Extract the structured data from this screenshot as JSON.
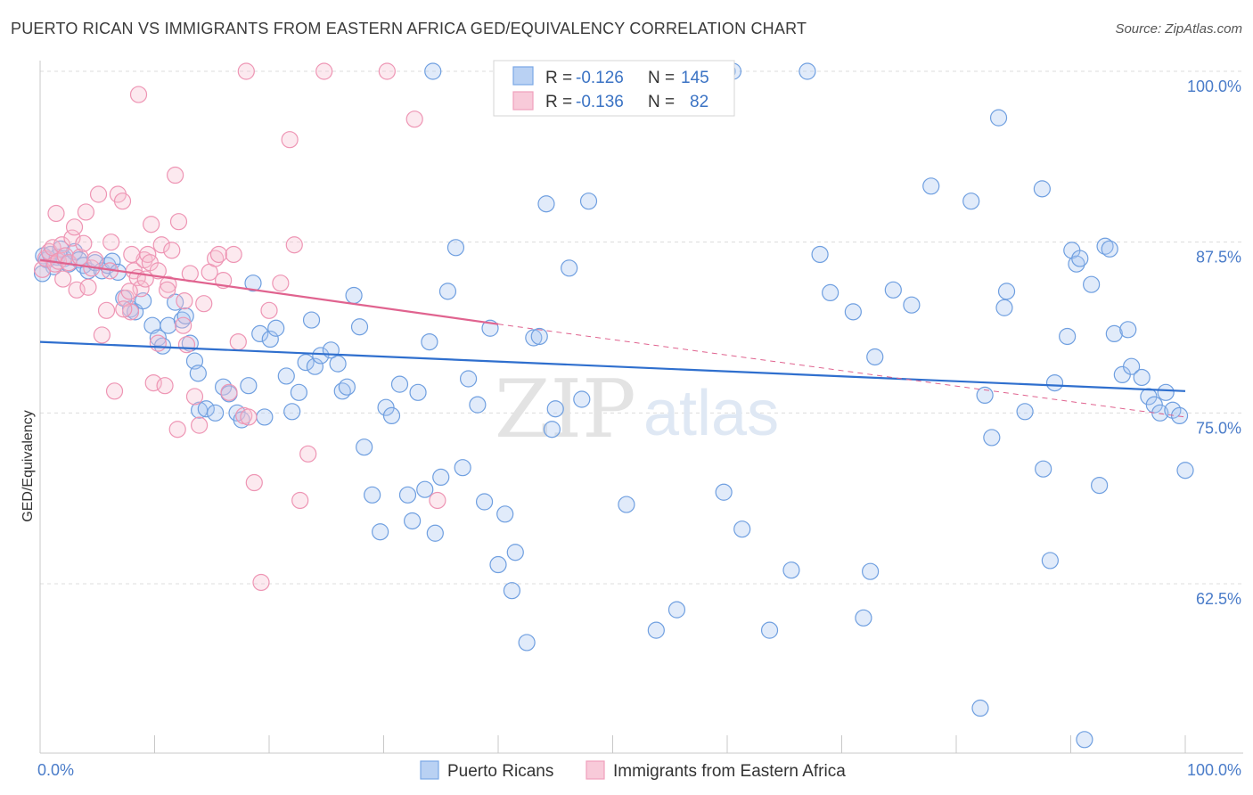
{
  "header": {
    "title": "PUERTO RICAN VS IMMIGRANTS FROM EASTERN AFRICA GED/EQUIVALENCY CORRELATION CHART",
    "source": "Source: ZipAtlas.com"
  },
  "watermark": {
    "zip": "ZIP",
    "atlas": "atlas"
  },
  "legend_box": {
    "rows": [
      {
        "r_label": "R = ",
        "r_value": "-0.126",
        "n_label": "N = ",
        "n_value": "145"
      },
      {
        "r_label": "R = ",
        "r_value": "-0.136",
        "n_label": "N = ",
        "n_value": "82"
      }
    ]
  },
  "chart_data": {
    "type": "scatter",
    "title": "PUERTO RICAN VS IMMIGRANTS FROM EASTERN AFRICA GED/EQUIVALENCY CORRELATION CHART",
    "xlabel": "",
    "ylabel": "GED/Equivalency",
    "xlim": [
      0,
      100
    ],
    "ylim": [
      50,
      100
    ],
    "x_tick_labels": [
      "0.0%",
      "100.0%"
    ],
    "y_ticks": [
      62.5,
      75.0,
      87.5,
      100.0
    ],
    "y_tick_labels": [
      "62.5%",
      "75.0%",
      "87.5%",
      "100.0%"
    ],
    "grid": true,
    "legend_position": "bottom",
    "colors": {
      "blue": "#7aa8e6",
      "blue_line": "#2f6fce",
      "pink": "#f0a0bc",
      "pink_line": "#e0638f"
    },
    "series": [
      {
        "name": "Puerto Ricans",
        "color": "#7aa8e6",
        "trend": {
          "x": [
            0,
            100
          ],
          "y": [
            80.2,
            76.6
          ],
          "dashed_from": null
        },
        "points": [
          [
            0.3,
            86.5
          ],
          [
            0.6,
            86.2
          ],
          [
            0.9,
            86.6
          ],
          [
            1.2,
            85.7
          ],
          [
            1.5,
            86.4
          ],
          [
            1.8,
            87.0
          ],
          [
            2.1,
            86.3
          ],
          [
            2.5,
            85.9
          ],
          [
            3.0,
            86.8
          ],
          [
            3.4,
            86.2
          ],
          [
            3.8,
            85.8
          ],
          [
            4.2,
            85.4
          ],
          [
            4.8,
            86.0
          ],
          [
            5.4,
            85.4
          ],
          [
            5.9,
            85.8
          ],
          [
            6.3,
            86.1
          ],
          [
            6.8,
            85.3
          ],
          [
            7.3,
            83.4
          ],
          [
            7.9,
            82.6
          ],
          [
            8.3,
            82.4
          ],
          [
            9.0,
            83.2
          ],
          [
            9.8,
            81.4
          ],
          [
            10.3,
            80.5
          ],
          [
            10.7,
            79.9
          ],
          [
            11.2,
            81.4
          ],
          [
            11.8,
            83.1
          ],
          [
            12.4,
            81.8
          ],
          [
            12.7,
            82.1
          ],
          [
            13.1,
            80.1
          ],
          [
            13.5,
            78.8
          ],
          [
            13.8,
            77.9
          ],
          [
            13.9,
            75.2
          ],
          [
            14.5,
            75.3
          ],
          [
            15.3,
            75.0
          ],
          [
            16.0,
            76.9
          ],
          [
            16.5,
            76.4
          ],
          [
            17.2,
            75.0
          ],
          [
            17.6,
            74.5
          ],
          [
            18.2,
            77.0
          ],
          [
            18.6,
            84.5
          ],
          [
            19.2,
            80.8
          ],
          [
            19.6,
            74.7
          ],
          [
            20.1,
            80.4
          ],
          [
            20.6,
            81.2
          ],
          [
            21.5,
            77.7
          ],
          [
            22.0,
            75.1
          ],
          [
            22.6,
            76.5
          ],
          [
            23.2,
            78.7
          ],
          [
            23.7,
            81.8
          ],
          [
            24.0,
            78.4
          ],
          [
            24.5,
            79.2
          ],
          [
            25.4,
            79.6
          ],
          [
            26.0,
            78.6
          ],
          [
            26.4,
            76.6
          ],
          [
            26.8,
            76.9
          ],
          [
            27.4,
            83.6
          ],
          [
            27.9,
            81.3
          ],
          [
            28.3,
            72.5
          ],
          [
            29.0,
            69.0
          ],
          [
            29.7,
            66.3
          ],
          [
            30.2,
            75.4
          ],
          [
            30.7,
            74.8
          ],
          [
            31.4,
            77.1
          ],
          [
            32.1,
            69.0
          ],
          [
            32.5,
            67.1
          ],
          [
            33.0,
            76.5
          ],
          [
            33.6,
            69.4
          ],
          [
            34.0,
            80.2
          ],
          [
            34.5,
            66.2
          ],
          [
            35.0,
            70.3
          ],
          [
            35.6,
            83.9
          ],
          [
            36.3,
            87.1
          ],
          [
            36.9,
            71.0
          ],
          [
            37.4,
            77.5
          ],
          [
            38.2,
            75.6
          ],
          [
            38.8,
            68.5
          ],
          [
            39.3,
            81.2
          ],
          [
            40.0,
            63.9
          ],
          [
            40.6,
            67.6
          ],
          [
            41.2,
            62.0
          ],
          [
            41.5,
            64.8
          ],
          [
            42.5,
            58.2
          ],
          [
            43.1,
            80.5
          ],
          [
            43.6,
            80.6
          ],
          [
            44.2,
            90.3
          ],
          [
            44.7,
            73.8
          ],
          [
            45.0,
            75.3
          ],
          [
            46.2,
            85.6
          ],
          [
            47.3,
            76.0
          ],
          [
            47.9,
            90.5
          ],
          [
            51.2,
            68.3
          ],
          [
            53.8,
            59.1
          ],
          [
            55.6,
            60.6
          ],
          [
            59.7,
            69.2
          ],
          [
            61.3,
            66.5
          ],
          [
            63.7,
            59.1
          ],
          [
            65.6,
            63.5
          ],
          [
            68.1,
            86.6
          ],
          [
            69.0,
            83.8
          ],
          [
            71.0,
            82.4
          ],
          [
            71.9,
            60.0
          ],
          [
            72.5,
            63.4
          ],
          [
            72.9,
            79.1
          ],
          [
            74.5,
            84.0
          ],
          [
            76.1,
            82.9
          ],
          [
            77.8,
            91.6
          ],
          [
            81.3,
            90.5
          ],
          [
            82.1,
            53.4
          ],
          [
            82.5,
            76.3
          ],
          [
            83.1,
            73.2
          ],
          [
            83.7,
            96.6
          ],
          [
            84.2,
            82.7
          ],
          [
            84.4,
            83.9
          ],
          [
            86.0,
            75.1
          ],
          [
            87.5,
            91.4
          ],
          [
            87.6,
            70.9
          ],
          [
            88.2,
            64.2
          ],
          [
            88.6,
            77.2
          ],
          [
            89.7,
            80.6
          ],
          [
            90.1,
            86.9
          ],
          [
            90.5,
            85.9
          ],
          [
            90.8,
            86.3
          ],
          [
            91.2,
            51.1
          ],
          [
            91.8,
            84.4
          ],
          [
            92.5,
            69.7
          ],
          [
            93.0,
            87.2
          ],
          [
            93.4,
            87.0
          ],
          [
            93.8,
            80.8
          ],
          [
            94.5,
            77.8
          ],
          [
            95.0,
            81.1
          ],
          [
            95.3,
            78.4
          ],
          [
            96.2,
            77.6
          ],
          [
            96.8,
            76.2
          ],
          [
            97.3,
            75.6
          ],
          [
            97.8,
            75.0
          ],
          [
            98.3,
            76.5
          ],
          [
            98.9,
            75.2
          ],
          [
            99.5,
            74.8
          ],
          [
            100.0,
            70.8
          ],
          [
            34.3,
            100.0
          ],
          [
            53.2,
            100.0
          ],
          [
            60.0,
            100.0
          ],
          [
            60.5,
            100.0
          ],
          [
            67.0,
            100.0
          ],
          [
            0.2,
            85.2
          ]
        ]
      },
      {
        "name": "Immigrants from Eastern Africa",
        "color": "#f0a0bc",
        "trend": {
          "x": [
            0,
            40,
            100
          ],
          "y": [
            86.2,
            81.5,
            74.7
          ],
          "dashed_from": 40
        },
        "points": [
          [
            0.2,
            85.5
          ],
          [
            0.5,
            86.3
          ],
          [
            0.8,
            86.8
          ],
          [
            1.1,
            87.1
          ],
          [
            1.3,
            85.9
          ],
          [
            1.6,
            86.1
          ],
          [
            1.9,
            87.3
          ],
          [
            2.2,
            86.5
          ],
          [
            2.5,
            86.0
          ],
          [
            2.8,
            87.8
          ],
          [
            3.0,
            88.6
          ],
          [
            3.2,
            84.0
          ],
          [
            3.5,
            86.4
          ],
          [
            3.8,
            87.4
          ],
          [
            4.2,
            84.2
          ],
          [
            4.5,
            85.6
          ],
          [
            4.8,
            86.2
          ],
          [
            5.1,
            91.0
          ],
          [
            5.4,
            80.7
          ],
          [
            5.8,
            82.5
          ],
          [
            6.1,
            85.4
          ],
          [
            6.5,
            76.6
          ],
          [
            6.8,
            91.0
          ],
          [
            7.2,
            90.5
          ],
          [
            7.5,
            83.4
          ],
          [
            7.9,
            82.4
          ],
          [
            8.2,
            85.4
          ],
          [
            8.5,
            84.9
          ],
          [
            8.8,
            84.1
          ],
          [
            9.1,
            86.2
          ],
          [
            9.4,
            86.6
          ],
          [
            9.6,
            86.0
          ],
          [
            9.9,
            77.2
          ],
          [
            10.3,
            85.4
          ],
          [
            10.6,
            87.3
          ],
          [
            10.9,
            77.0
          ],
          [
            11.2,
            84.4
          ],
          [
            11.5,
            86.9
          ],
          [
            11.8,
            92.4
          ],
          [
            12.1,
            89.0
          ],
          [
            12.5,
            81.4
          ],
          [
            12.8,
            80.0
          ],
          [
            13.1,
            85.2
          ],
          [
            13.5,
            76.2
          ],
          [
            13.9,
            74.1
          ],
          [
            14.3,
            83.0
          ],
          [
            14.8,
            85.3
          ],
          [
            15.3,
            86.3
          ],
          [
            15.6,
            86.6
          ],
          [
            16.0,
            84.7
          ],
          [
            16.5,
            76.5
          ],
          [
            16.9,
            86.6
          ],
          [
            17.3,
            80.2
          ],
          [
            17.8,
            74.8
          ],
          [
            18.2,
            74.7
          ],
          [
            18.7,
            69.9
          ],
          [
            19.3,
            62.6
          ],
          [
            20.0,
            82.5
          ],
          [
            21.0,
            84.5
          ],
          [
            21.8,
            95.0
          ],
          [
            22.2,
            87.3
          ],
          [
            22.7,
            68.6
          ],
          [
            23.4,
            72.0
          ],
          [
            24.8,
            100.0
          ],
          [
            18.0,
            100.0
          ],
          [
            30.3,
            100.0
          ],
          [
            32.7,
            96.5
          ],
          [
            34.7,
            68.6
          ],
          [
            8.6,
            98.3
          ],
          [
            10.3,
            80.1
          ],
          [
            7.8,
            83.9
          ],
          [
            6.2,
            87.5
          ],
          [
            8.0,
            86.6
          ],
          [
            9.2,
            84.8
          ],
          [
            12.0,
            73.8
          ],
          [
            12.6,
            83.2
          ],
          [
            11.1,
            84.0
          ],
          [
            2.0,
            84.8
          ],
          [
            1.4,
            89.6
          ],
          [
            7.3,
            82.6
          ],
          [
            9.7,
            88.8
          ],
          [
            4.0,
            89.7
          ]
        ]
      }
    ]
  }
}
